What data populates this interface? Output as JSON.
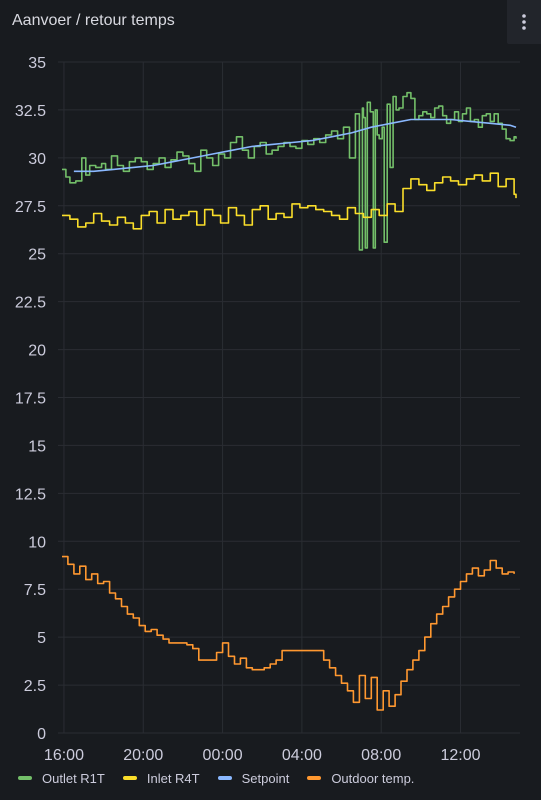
{
  "panel": {
    "title": "Aanvoer / retour temps",
    "menu_icon": "vertical-ellipsis-icon"
  },
  "colors": {
    "background": "#181b1f",
    "grid": "#2a2d33",
    "axis_text": "#ccccdc"
  },
  "chart_data": {
    "type": "line",
    "title": "Aanvoer / retour temps",
    "xlabel": "",
    "ylabel": "",
    "xlim": [
      15.7,
      39.0
    ],
    "ylim": [
      0,
      35
    ],
    "y_ticks": [
      "0",
      "2.5",
      "5",
      "7.5",
      "10",
      "12.5",
      "15",
      "17.5",
      "20",
      "22.5",
      "25",
      "27.5",
      "30",
      "32.5",
      "35"
    ],
    "y_tick_values": [
      0,
      2.5,
      5,
      7.5,
      10,
      12.5,
      15,
      17.5,
      20,
      22.5,
      25,
      27.5,
      30,
      32.5,
      35
    ],
    "x_ticks": [
      "16:00",
      "20:00",
      "00:00",
      "04:00",
      "08:00",
      "12:00"
    ],
    "x_tick_values": [
      16,
      20,
      24,
      28,
      32,
      36
    ],
    "grid": true,
    "legend_position": "bottom",
    "series": [
      {
        "name": "Outlet R1T",
        "color": "#73bf69",
        "step": true,
        "x": [
          15.9,
          16.1,
          16.3,
          16.6,
          16.9,
          17.1,
          17.3,
          17.6,
          17.9,
          18.1,
          18.4,
          18.7,
          19.0,
          19.3,
          19.6,
          19.9,
          20.2,
          20.5,
          20.8,
          21.1,
          21.4,
          21.7,
          22.0,
          22.3,
          22.6,
          22.9,
          23.2,
          23.5,
          23.8,
          24.1,
          24.4,
          24.7,
          25.0,
          25.3,
          25.6,
          25.9,
          26.2,
          26.5,
          26.8,
          27.1,
          27.4,
          27.7,
          28.0,
          28.3,
          28.6,
          28.9,
          29.2,
          29.5,
          29.8,
          30.1,
          30.4,
          30.7,
          30.9,
          31.05,
          31.1,
          31.2,
          31.3,
          31.45,
          31.6,
          31.7,
          31.8,
          31.9,
          32.05,
          32.15,
          32.3,
          32.45,
          32.6,
          32.75,
          32.9,
          33.1,
          33.3,
          33.5,
          33.7,
          33.9,
          34.1,
          34.3,
          34.5,
          34.7,
          34.9,
          35.1,
          35.3,
          35.5,
          35.7,
          35.9,
          36.1,
          36.3,
          36.5,
          36.7,
          36.9,
          37.1,
          37.3,
          37.5,
          37.7,
          37.9,
          38.1,
          38.3,
          38.5,
          38.7,
          38.8
        ],
        "y": [
          29.4,
          29.0,
          28.7,
          28.8,
          30.0,
          29.1,
          29.6,
          29.5,
          29.7,
          29.4,
          30.1,
          29.6,
          29.3,
          29.8,
          30.0,
          29.8,
          29.4,
          29.7,
          30.0,
          29.5,
          29.9,
          30.3,
          30.1,
          29.7,
          29.3,
          30.4,
          30.0,
          29.6,
          30.2,
          30.0,
          30.8,
          31.1,
          30.4,
          30.0,
          30.6,
          30.8,
          30.2,
          30.4,
          30.6,
          30.8,
          30.6,
          30.5,
          30.9,
          30.7,
          31.0,
          30.8,
          31.2,
          31.4,
          31.0,
          31.6,
          30.0,
          32.3,
          25.2,
          32.6,
          32.1,
          25.3,
          32.9,
          32.4,
          25.3,
          32.5,
          31.2,
          31.0,
          31.6,
          25.6,
          32.8,
          29.5,
          33.2,
          32.5,
          32.6,
          33.2,
          33.4,
          33.1,
          32.0,
          32.2,
          32.4,
          32.3,
          32.1,
          32.6,
          32.7,
          32.2,
          31.8,
          32.0,
          32.4,
          31.9,
          32.3,
          32.6,
          31.9,
          32.0,
          31.6,
          32.2,
          32.3,
          31.9,
          32.3,
          31.8,
          31.5,
          31.0,
          30.9,
          31.1,
          31.0
        ]
      },
      {
        "name": "Inlet R4T",
        "color": "#fade2a",
        "step": true,
        "x": [
          15.9,
          16.3,
          16.7,
          17.1,
          17.5,
          17.9,
          18.3,
          18.7,
          19.1,
          19.5,
          19.9,
          20.3,
          20.7,
          21.1,
          21.5,
          21.9,
          22.3,
          22.7,
          23.1,
          23.5,
          23.9,
          24.3,
          24.7,
          25.1,
          25.5,
          25.9,
          26.3,
          26.7,
          27.1,
          27.5,
          27.9,
          28.3,
          28.7,
          29.1,
          29.5,
          29.9,
          30.3,
          30.7,
          31.1,
          31.5,
          31.9,
          32.3,
          32.7,
          33.1,
          33.5,
          33.9,
          34.3,
          34.7,
          35.1,
          35.5,
          35.9,
          36.3,
          36.7,
          37.1,
          37.5,
          37.9,
          38.3,
          38.7,
          38.8
        ],
        "y": [
          27.0,
          26.8,
          26.4,
          26.6,
          27.1,
          26.7,
          26.5,
          26.9,
          26.6,
          26.3,
          27.0,
          27.2,
          26.6,
          27.3,
          26.8,
          27.0,
          27.2,
          26.5,
          27.3,
          27.0,
          26.6,
          27.4,
          27.0,
          26.5,
          27.3,
          27.5,
          26.8,
          27.1,
          26.9,
          27.6,
          27.4,
          27.5,
          27.3,
          27.2,
          27.0,
          26.8,
          27.4,
          27.1,
          26.9,
          27.3,
          27.0,
          27.6,
          27.2,
          28.4,
          28.9,
          28.6,
          28.3,
          28.7,
          29.0,
          28.8,
          28.6,
          28.9,
          29.1,
          28.8,
          29.2,
          28.5,
          28.9,
          28.1,
          27.9
        ]
      },
      {
        "name": "Setpoint",
        "color": "#8ab8ff",
        "step": false,
        "x": [
          16.5,
          17.5,
          18.5,
          19.5,
          20.5,
          21.5,
          22.5,
          23.5,
          24.5,
          25.5,
          26.5,
          27.5,
          28.5,
          29.5,
          30.5,
          31.5,
          32.5,
          33.5,
          34.5,
          35.5,
          36.5,
          37.5,
          38.5,
          38.8
        ],
        "y": [
          29.3,
          29.3,
          29.4,
          29.5,
          29.6,
          29.8,
          30.0,
          30.2,
          30.4,
          30.6,
          30.7,
          30.8,
          30.9,
          31.1,
          31.3,
          31.6,
          31.8,
          32.0,
          32.0,
          32.0,
          31.9,
          31.8,
          31.7,
          31.6
        ]
      },
      {
        "name": "Outdoor temp.",
        "color": "#ff9830",
        "step": true,
        "x": [
          15.9,
          16.2,
          16.5,
          16.8,
          17.1,
          17.4,
          17.7,
          18.0,
          18.3,
          18.6,
          18.9,
          19.2,
          19.5,
          19.8,
          20.1,
          20.4,
          20.7,
          21.0,
          21.3,
          21.6,
          21.9,
          22.2,
          22.5,
          22.8,
          23.1,
          23.4,
          23.7,
          24.0,
          24.3,
          24.6,
          24.9,
          25.2,
          25.5,
          25.8,
          26.1,
          26.4,
          26.7,
          27.0,
          27.3,
          27.6,
          27.9,
          28.2,
          28.5,
          28.8,
          29.1,
          29.4,
          29.7,
          30.0,
          30.3,
          30.6,
          30.9,
          31.2,
          31.5,
          31.8,
          32.1,
          32.4,
          32.7,
          33.0,
          33.3,
          33.6,
          33.9,
          34.2,
          34.5,
          34.8,
          35.1,
          35.4,
          35.7,
          36.0,
          36.3,
          36.6,
          36.9,
          37.2,
          37.5,
          37.8,
          38.1,
          38.4,
          38.7
        ],
        "y": [
          9.2,
          8.8,
          8.3,
          8.7,
          8.0,
          8.3,
          7.8,
          7.9,
          7.3,
          7.0,
          6.6,
          6.2,
          6.0,
          5.6,
          5.3,
          5.4,
          5.1,
          4.9,
          4.7,
          4.7,
          4.7,
          4.6,
          4.4,
          3.8,
          3.8,
          3.8,
          4.2,
          4.7,
          4.0,
          3.6,
          3.9,
          3.4,
          3.3,
          3.3,
          3.4,
          3.6,
          3.8,
          4.3,
          4.3,
          4.3,
          4.3,
          4.3,
          4.3,
          4.3,
          3.8,
          3.4,
          3.0,
          2.6,
          2.2,
          1.6,
          3.0,
          1.8,
          2.9,
          1.2,
          2.2,
          1.4,
          2.0,
          2.7,
          3.3,
          3.8,
          4.3,
          5.0,
          5.7,
          6.2,
          6.6,
          7.1,
          7.5,
          7.9,
          8.3,
          8.6,
          8.2,
          8.5,
          9.0,
          8.6,
          8.3,
          8.4,
          8.3
        ]
      }
    ]
  }
}
